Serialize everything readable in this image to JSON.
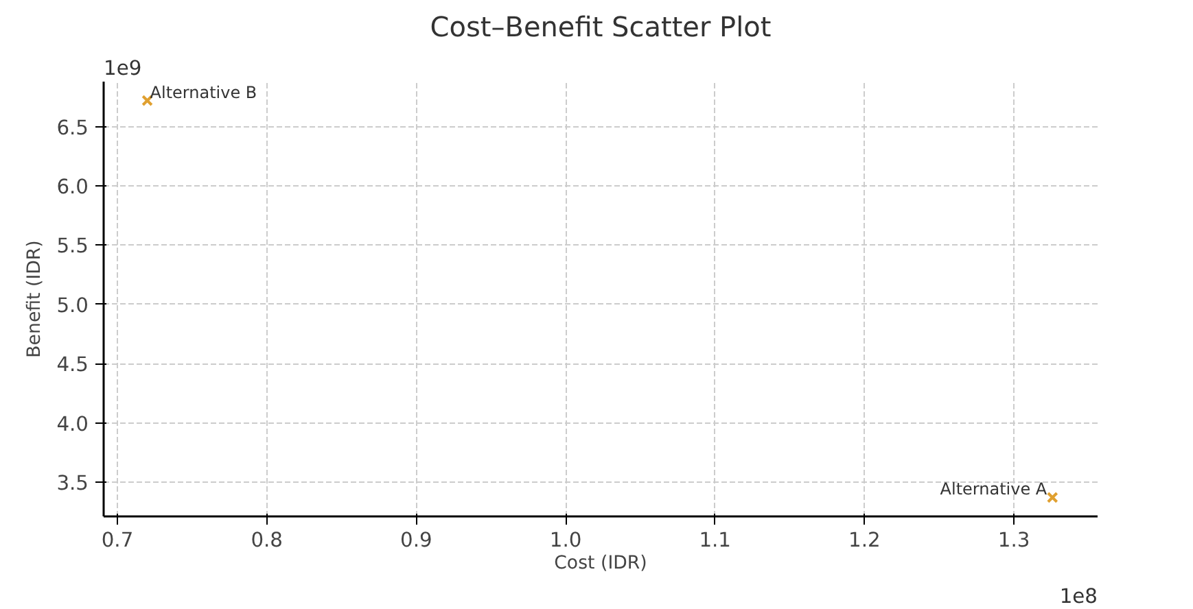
{
  "chart_data": {
    "type": "scatter",
    "title": "Cost–Benefit Scatter Plot",
    "xlabel": "Cost (IDR)",
    "ylabel": "Benefit (IDR)",
    "x": [
      1.3258,
      0.72
    ],
    "series": [
      {
        "color": "#e0a030",
        "values": [
          3.37,
          6.72
        ]
      }
    ],
    "marker": "cross",
    "xlim": [
      0.6908,
      1.356
    ],
    "xticks": [
      0.7,
      0.8,
      0.9,
      {
        "value": 1,
        "label": "1.0"
      },
      1.1,
      1.2,
      1.3
    ],
    "ylim": [
      3.21,
      6.88
    ],
    "yticks": [
      3.5,
      {
        "value": 4,
        "label": "4.0"
      },
      4.5,
      {
        "value": 5,
        "label": "5.0"
      },
      5.5,
      {
        "value": 6,
        "label": "6.0"
      },
      6.5
    ],
    "grid": true,
    "annotations": [
      {
        "text": "Alternative A",
        "x": 1.3258,
        "y": 3.37
      },
      {
        "text": "Alternative B",
        "x": 0.72,
        "y": 6.72
      },
      "1e9",
      "1e8"
    ]
  }
}
